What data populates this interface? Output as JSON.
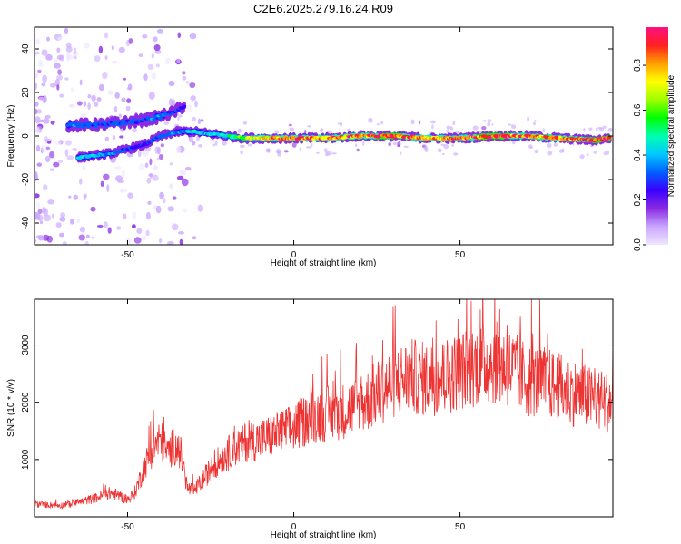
{
  "title": "C2E6.2025.279.16.24.R09",
  "chart_data": [
    {
      "type": "heatmap",
      "xlabel": "Height of straight line (km)",
      "ylabel": "Frequency (Hz)",
      "xlim": [
        -78,
        96
      ],
      "ylim": [
        -50,
        50
      ],
      "xticks": [
        -50,
        0,
        50
      ],
      "yticks": [
        -40,
        -20,
        0,
        20,
        40
      ],
      "colorbar": {
        "label": "Normalized spectral amplitude",
        "range": [
          0,
          0.97
        ],
        "ticks": [
          "0.0",
          "0.2",
          "0.4",
          "0.6",
          "0.8"
        ],
        "colors": [
          "#f0e6ff",
          "#c9a6ff",
          "#8a2be2",
          "#3a00ff",
          "#0060ff",
          "#00c8ff",
          "#00ffb0",
          "#00ff00",
          "#a0ff00",
          "#ffff00",
          "#ffa000",
          "#ff2020",
          "#ff1080"
        ]
      },
      "ridge": {
        "x": [
          -65,
          -60,
          -55,
          -50,
          -45,
          -40,
          -35,
          -30,
          -25,
          -20,
          -15,
          -10,
          -5,
          0,
          10,
          20,
          30,
          40,
          50,
          60,
          70,
          80,
          90,
          95
        ],
        "frequency": [
          -10,
          -9,
          -8,
          -6,
          -4,
          0,
          2,
          2,
          1,
          0,
          -1,
          -1,
          -1,
          -1,
          -1,
          0,
          0,
          -1,
          -1,
          0,
          0,
          -1,
          -2,
          -1
        ],
        "amplitude": [
          0.4,
          0.4,
          0.35,
          0.3,
          0.25,
          0.3,
          0.35,
          0.45,
          0.4,
          0.5,
          0.6,
          0.75,
          0.8,
          0.85,
          0.8,
          0.85,
          0.9,
          0.8,
          0.85,
          0.9,
          0.85,
          0.8,
          0.9,
          0.9
        ]
      },
      "upper_branch": {
        "x": [
          -68,
          -60,
          -52,
          -46,
          -40,
          -36,
          -33
        ],
        "frequency": [
          5,
          5,
          6,
          7,
          9,
          11,
          14
        ],
        "amplitude": [
          0.35,
          0.3,
          0.3,
          0.3,
          0.35,
          0.3,
          0.25
        ]
      }
    },
    {
      "type": "line",
      "xlabel": "Height of straight line (km)",
      "ylabel": "SNR (10 * v/v)",
      "xlim": [
        -78,
        96
      ],
      "ylim": [
        0,
        3800
      ],
      "xticks": [
        -50,
        0,
        50
      ],
      "yticks": [
        1000,
        2000,
        3000
      ],
      "color": "#ee3333",
      "series": [
        {
          "x": [
            -78,
            -70,
            -65,
            -60,
            -55,
            -50,
            -48,
            -46,
            -44,
            -42,
            -40,
            -38,
            -36,
            -34,
            -32,
            -30,
            -28,
            -26,
            -24,
            -22,
            -20,
            -15,
            -10,
            -5,
            0,
            5,
            10,
            15,
            20,
            25,
            30,
            35,
            40,
            45,
            50,
            55,
            60,
            65,
            70,
            75,
            80,
            85,
            90,
            96
          ],
          "snr": [
            220,
            200,
            250,
            320,
            420,
            300,
            400,
            700,
            1000,
            1250,
            1350,
            1100,
            1250,
            1100,
            500,
            450,
            600,
            750,
            900,
            1000,
            1100,
            1300,
            1350,
            1450,
            1550,
            1750,
            1800,
            1850,
            1950,
            2150,
            2350,
            2450,
            2400,
            2450,
            2550,
            2650,
            2700,
            2600,
            2400,
            2350,
            2250,
            2150,
            2050,
            2000
          ]
        }
      ]
    }
  ]
}
